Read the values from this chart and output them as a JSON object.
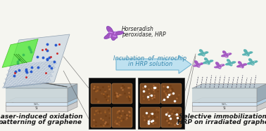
{
  "background_color": "#f5f5f0",
  "left_label_line1": "Laser-induced oxidation",
  "left_label_line2": "patterning of graphene",
  "right_label_line1": "Selective immobilization of",
  "right_label_line2": "HRP on irradiated graphene",
  "arrow_label_line1": "Incubation  of  microchip",
  "arrow_label_line2": "in HRP solution",
  "hrp_label_line1": "Horseradish",
  "hrp_label_line2": "peroxidase, HRP",
  "label_color": "#1a1a1a",
  "arrow_label_color": "#3a8ab0",
  "arrow_fill_color": "#b8dff0",
  "arrow_edge_color": "#6ab0d0",
  "label_fontsize": 6.5,
  "arrow_label_fontsize": 6.0,
  "hrp_label_fontsize": 5.5,
  "sio2_color": "#d8e8f4",
  "si_color": "#e0e0e0",
  "graphene_top_color": "#c8d4d8",
  "graphene_wave_color": "#a0b4bc",
  "slab_edge_color": "#888888",
  "lattice_color": "#5577aa",
  "blue_dot_color": "#2255cc",
  "red_dot_color": "#cc2222",
  "laser_fill": "#44ee22",
  "laser_edge": "#22aa00",
  "line_color": "#444444",
  "dashed_line_color": "#555566",
  "protein_purple": "#9944bb",
  "protein_teal": "#44aaaa",
  "white_spot": "#ffffff",
  "afm_bg": "#0a0a0a",
  "afm_sq_left": "#7a4820",
  "afm_sq_right": "#7a4820"
}
